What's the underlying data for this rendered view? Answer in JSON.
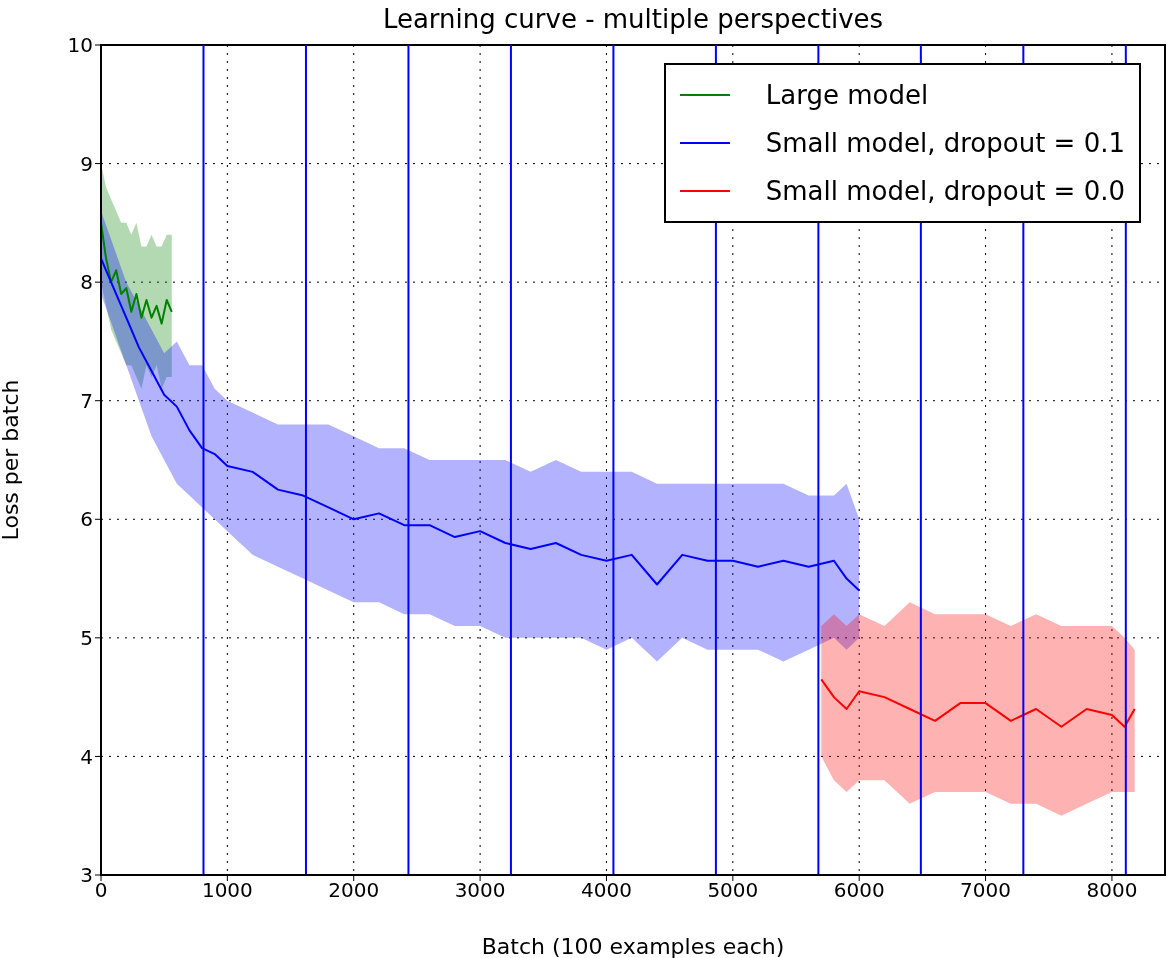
{
  "chart_data": {
    "type": "line",
    "title": "Learning curve - multiple perspectives",
    "xlabel": "Batch (100 examples each)",
    "ylabel": "Loss per batch",
    "xlim": [
      0,
      8420
    ],
    "xticks": [
      0,
      1000,
      2000,
      3000,
      4000,
      5000,
      6000,
      7000,
      8000
    ],
    "ylim": [
      3,
      10
    ],
    "yticks": [
      3,
      4,
      5,
      6,
      7,
      8,
      9,
      10
    ],
    "grid": true,
    "legend": "top right",
    "marker": "none",
    "line_style": "solid",
    "series": [
      {
        "name": "Large model",
        "color": "#008000",
        "x": [
          0,
          40,
          80,
          120,
          160,
          200,
          240,
          280,
          320,
          360,
          400,
          440,
          480,
          520,
          560
        ],
        "values": [
          8.5,
          8.2,
          8.0,
          8.1,
          7.9,
          7.95,
          7.75,
          7.9,
          7.7,
          7.85,
          7.7,
          7.8,
          7.65,
          7.85,
          7.75
        ],
        "lower": [
          8.0,
          7.8,
          7.6,
          7.5,
          7.4,
          7.3,
          7.3,
          7.2,
          7.1,
          7.3,
          7.2,
          7.3,
          7.1,
          7.2,
          7.2
        ],
        "upper": [
          9.0,
          8.8,
          8.7,
          8.6,
          8.5,
          8.5,
          8.4,
          8.5,
          8.3,
          8.3,
          8.4,
          8.3,
          8.3,
          8.4,
          8.4
        ]
      },
      {
        "name": "Small model, dropout = 0.1",
        "color": "#0000ff",
        "x": [
          0,
          100,
          200,
          300,
          400,
          500,
          600,
          700,
          800,
          900,
          1000,
          1200,
          1400,
          1600,
          1800,
          2000,
          2200,
          2400,
          2600,
          2800,
          3000,
          3200,
          3400,
          3600,
          3800,
          4000,
          4200,
          4400,
          4600,
          4800,
          5000,
          5200,
          5400,
          5600,
          5800,
          5900,
          6000
        ],
        "values": [
          8.2,
          7.95,
          7.7,
          7.45,
          7.25,
          7.05,
          6.95,
          6.75,
          6.6,
          6.55,
          6.45,
          6.4,
          6.25,
          6.2,
          6.1,
          6.0,
          6.05,
          5.95,
          5.95,
          5.85,
          5.9,
          5.8,
          5.75,
          5.8,
          5.7,
          5.65,
          5.7,
          5.45,
          5.7,
          5.65,
          5.65,
          5.6,
          5.65,
          5.6,
          5.65,
          5.5,
          5.4
        ],
        "lower": [
          7.9,
          7.6,
          7.3,
          7.0,
          6.7,
          6.5,
          6.3,
          6.2,
          6.1,
          6.0,
          5.9,
          5.7,
          5.6,
          5.5,
          5.4,
          5.3,
          5.3,
          5.2,
          5.2,
          5.1,
          5.1,
          5.0,
          5.0,
          5.0,
          5.0,
          4.9,
          5.0,
          4.8,
          5.0,
          4.9,
          4.9,
          4.9,
          4.8,
          4.9,
          5.0,
          4.9,
          5.0
        ],
        "upper": [
          8.6,
          8.3,
          8.0,
          7.8,
          7.6,
          7.4,
          7.5,
          7.3,
          7.3,
          7.1,
          7.0,
          6.9,
          6.8,
          6.8,
          6.8,
          6.7,
          6.6,
          6.6,
          6.5,
          6.5,
          6.5,
          6.5,
          6.4,
          6.5,
          6.4,
          6.4,
          6.4,
          6.3,
          6.3,
          6.3,
          6.3,
          6.3,
          6.3,
          6.2,
          6.2,
          6.3,
          6.0
        ]
      },
      {
        "name": "Small model, dropout = 0.0",
        "color": "#ff0000",
        "x": [
          5700,
          5800,
          5900,
          6000,
          6200,
          6400,
          6600,
          6800,
          7000,
          7200,
          7400,
          7600,
          7800,
          8000,
          8100,
          8180
        ],
        "values": [
          4.65,
          4.5,
          4.4,
          4.55,
          4.5,
          4.4,
          4.3,
          4.45,
          4.45,
          4.3,
          4.4,
          4.25,
          4.4,
          4.35,
          4.25,
          4.4
        ],
        "lower": [
          4.0,
          3.8,
          3.7,
          3.8,
          3.8,
          3.6,
          3.7,
          3.7,
          3.7,
          3.6,
          3.6,
          3.5,
          3.6,
          3.7,
          3.7,
          3.7
        ],
        "upper": [
          5.1,
          5.2,
          5.1,
          5.2,
          5.1,
          5.3,
          5.2,
          5.2,
          5.2,
          5.1,
          5.2,
          5.1,
          5.1,
          5.1,
          5.0,
          4.9
        ]
      }
    ],
    "ref_lines": [
      {
        "axis": "x",
        "value": 811,
        "color": "#0000ff"
      },
      {
        "axis": "x",
        "value": 1622,
        "color": "#0000ff"
      },
      {
        "axis": "x",
        "value": 2433,
        "color": "#0000ff"
      },
      {
        "axis": "x",
        "value": 3244,
        "color": "#0000ff"
      },
      {
        "axis": "x",
        "value": 4055,
        "color": "#0000ff"
      },
      {
        "axis": "x",
        "value": 4866,
        "color": "#0000ff"
      },
      {
        "axis": "x",
        "value": 5677,
        "color": "#0000ff"
      },
      {
        "axis": "x",
        "value": 6488,
        "color": "#0000ff"
      },
      {
        "axis": "x",
        "value": 7299,
        "color": "#0000ff"
      },
      {
        "axis": "x",
        "value": 8110,
        "color": "#0000ff"
      }
    ]
  }
}
